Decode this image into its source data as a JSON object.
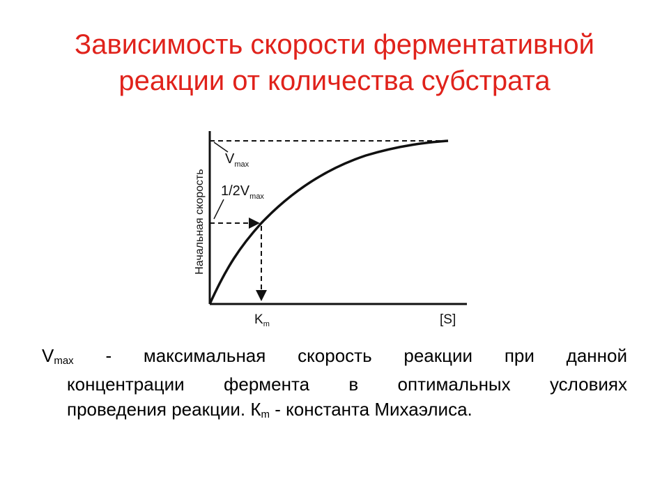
{
  "title": {
    "line1": "Зависимость скорости ферментативной",
    "line2": "реакции от количества субстрата"
  },
  "diagram": {
    "y_axis_label": "Начальная скорость",
    "vmax_label_main": "V",
    "vmax_label_sub": "max",
    "half_vmax_label_main": "1/2V",
    "half_vmax_label_sub": "max",
    "km_label_main": "K",
    "km_label_sub": "m",
    "x_axis_label": "[S]"
  },
  "caption": {
    "vmax_main": "V",
    "vmax_sub": "max",
    "line1_rest": " - максимальная скорость реакции при данной",
    "line2": "концентрации фермента в оптимальных условиях",
    "line3_a": "проведения реакции. К",
    "line3_sub": "m",
    "line3_b": " - константа Михаэлиса."
  },
  "colors": {
    "title": "#e0221b",
    "text": "#000000",
    "curve": "#111111"
  }
}
